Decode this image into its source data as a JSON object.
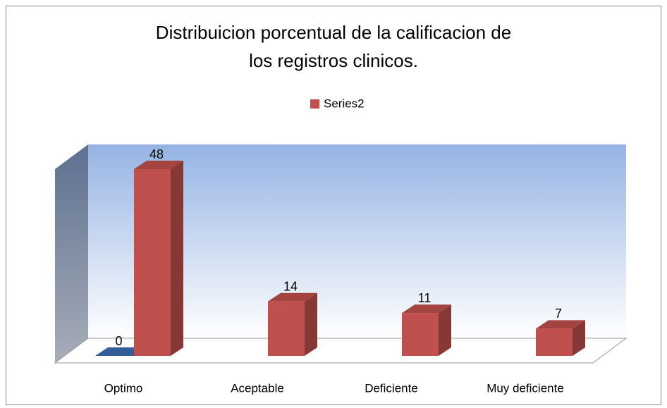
{
  "chart_data": {
    "type": "bar3d",
    "title": "Distribuicion porcentual de la calificacion de los registros clinicos.",
    "categories": [
      "Optimo",
      "Aceptable",
      "Deficiente",
      "Muy deficiente"
    ],
    "series": [
      {
        "color": "#3c6db0",
        "values": [
          0,
          null,
          null,
          null
        ]
      },
      {
        "name": "Series2",
        "color": "#c0504d",
        "values": [
          48,
          14,
          11,
          7
        ]
      }
    ],
    "legend": "top"
  }
}
